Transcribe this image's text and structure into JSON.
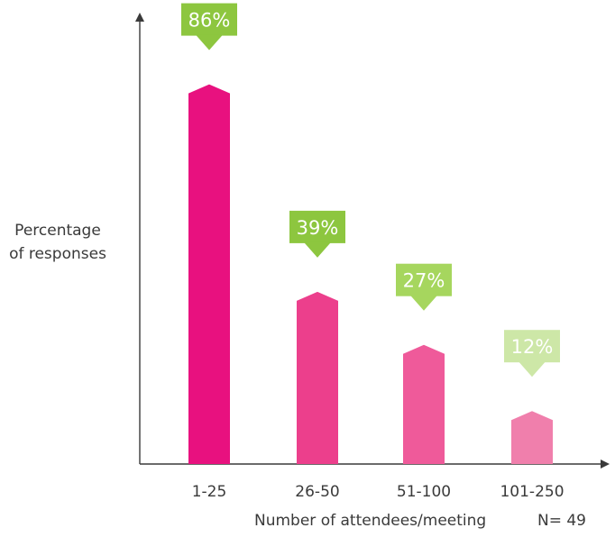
{
  "chart_data": {
    "type": "bar",
    "categories": [
      "1-25",
      "26-50",
      "51-100",
      "101-250"
    ],
    "values": [
      86,
      39,
      27,
      12
    ],
    "value_labels": [
      "86%",
      "39%",
      "27%",
      "12%"
    ],
    "ylabel_lines": [
      "Percentage",
      "of responses"
    ],
    "xlabel": "Number of attendees/meeting",
    "sample_size": "N= 49",
    "ylim": [
      0,
      100
    ],
    "grid": false,
    "bar_colors": [
      "#e8117f",
      "#ec3f8c",
      "#ef5a9a",
      "#f07fac"
    ],
    "label_colors": [
      "#8dc63f",
      "#8dc63f",
      "#a6d65e",
      "#cde7a7"
    ],
    "label_text_color": "#ffffff",
    "axis_color": "#3a3a3a"
  }
}
